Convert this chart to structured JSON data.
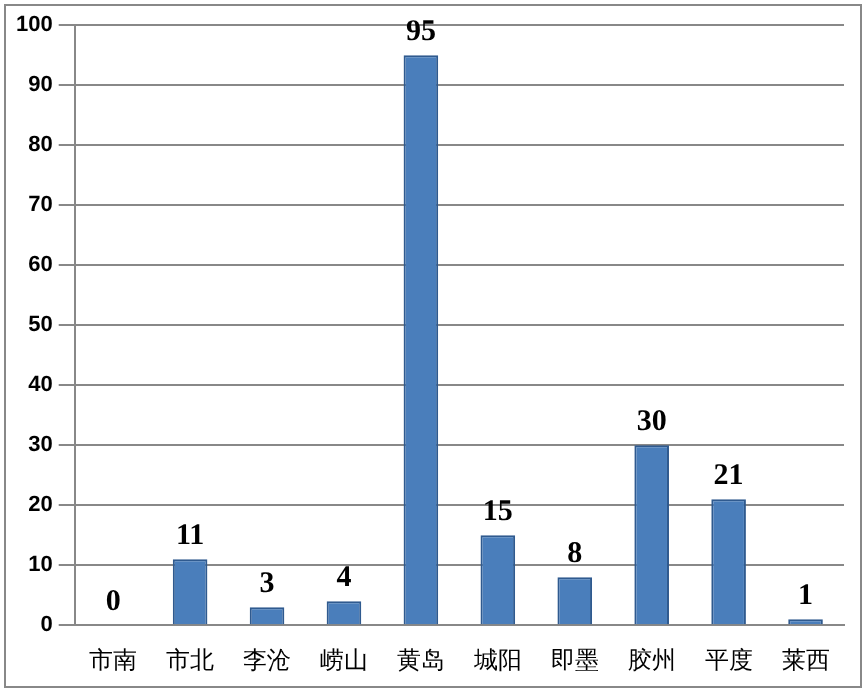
{
  "chart_data": {
    "type": "bar",
    "categories": [
      "市南",
      "市北",
      "李沧",
      "崂山",
      "黄岛",
      "城阳",
      "即墨",
      "胶州",
      "平度",
      "莱西"
    ],
    "values": [
      0,
      11,
      3,
      4,
      95,
      15,
      8,
      30,
      21,
      1
    ],
    "color": "#4a7ebb",
    "ylim": [
      0,
      100
    ],
    "yticks": [
      0,
      10,
      20,
      30,
      40,
      50,
      60,
      70,
      80,
      90,
      100
    ],
    "grid": "y",
    "data_labels": true,
    "legend": false
  }
}
